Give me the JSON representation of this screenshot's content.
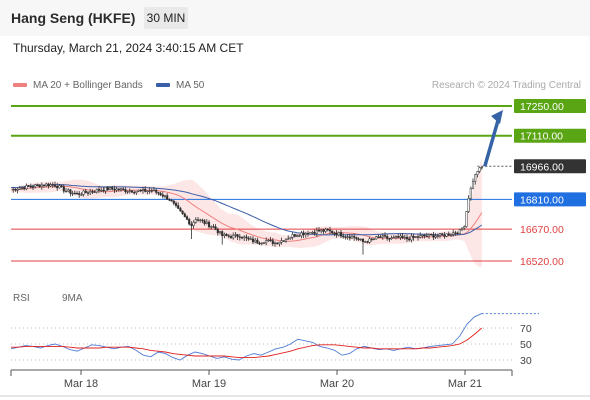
{
  "header": {
    "title": "Hang Seng (HKFE)",
    "timeframe": "30 MIN",
    "datetime": "Thursday, March 21, 2024 3:40:15 AM CET"
  },
  "legend": {
    "ma20": "MA 20 + Bollinger Bands",
    "ma50": "MA 50",
    "credit": "Research © 2024 Trading Central",
    "rsi": "RSI",
    "rsi_ma": "9MA"
  },
  "colors": {
    "candle": "#2f2f2f",
    "ma20": "#f08080",
    "ma50": "#3b5ea8",
    "bands": "#fbdede",
    "target_green": "#5aa514",
    "current_gray": "#333333",
    "pivot_blue": "#1f6fe0",
    "support_red": "#e04040",
    "arrow": "#3563a6",
    "rsi": "#4e7bd4",
    "rsi_ma": "#e0201e"
  },
  "chart_data": [
    {
      "type": "candlestick",
      "instrument": "Hang Seng (HKFE)",
      "interval": "30 MIN",
      "ylim": [
        16470,
        17320
      ],
      "x_ticks": [
        "Mar 18",
        "Mar 19",
        "Mar 20",
        "Mar 21"
      ],
      "series": [
        {
          "name": "MA 20 + Bollinger Bands",
          "kind": "moving_average"
        },
        {
          "name": "MA 50",
          "kind": "moving_average"
        }
      ],
      "price_path": [
        [
          0,
          16855
        ],
        [
          4,
          16865
        ],
        [
          8,
          16870
        ],
        [
          12,
          16876
        ],
        [
          16,
          16880
        ],
        [
          20,
          16878
        ],
        [
          25,
          16850
        ],
        [
          30,
          16835
        ],
        [
          35,
          16845
        ],
        [
          40,
          16855
        ],
        [
          44,
          16860
        ],
        [
          48,
          16858
        ],
        [
          52,
          16853
        ],
        [
          56,
          16850
        ],
        [
          60,
          16850
        ],
        [
          64,
          16852
        ],
        [
          68,
          16836
        ],
        [
          72,
          16810
        ],
        [
          76,
          16760
        ],
        [
          80,
          16715
        ],
        [
          82,
          16690
        ],
        [
          84,
          16720
        ],
        [
          88,
          16700
        ],
        [
          92,
          16680
        ],
        [
          96,
          16640
        ],
        [
          100,
          16635
        ],
        [
          104,
          16640
        ],
        [
          108,
          16620
        ],
        [
          112,
          16610
        ],
        [
          116,
          16615
        ],
        [
          120,
          16605
        ],
        [
          124,
          16620
        ],
        [
          128,
          16640
        ],
        [
          132,
          16650
        ],
        [
          136,
          16655
        ],
        [
          140,
          16662
        ],
        [
          144,
          16662
        ],
        [
          148,
          16650
        ],
        [
          152,
          16640
        ],
        [
          156,
          16632
        ],
        [
          160,
          16610
        ],
        [
          164,
          16620
        ],
        [
          168,
          16634
        ],
        [
          172,
          16625
        ],
        [
          176,
          16630
        ],
        [
          180,
          16625
        ],
        [
          184,
          16632
        ],
        [
          188,
          16638
        ],
        [
          192,
          16640
        ],
        [
          196,
          16640
        ],
        [
          200,
          16650
        ],
        [
          204,
          16660
        ],
        [
          206,
          16690
        ],
        [
          208,
          16820
        ],
        [
          210,
          16900
        ],
        [
          212,
          16945
        ],
        [
          214,
          16960
        ]
      ],
      "levels": [
        {
          "value": 17250.0,
          "label": "17250.00",
          "kind": "target"
        },
        {
          "value": 17110.0,
          "label": "17110.00",
          "kind": "target"
        },
        {
          "value": 16966.0,
          "label": "16966.00",
          "kind": "last_price"
        },
        {
          "value": 16810.0,
          "label": "16810.00",
          "kind": "pivot"
        },
        {
          "value": 16670.0,
          "label": "16670.00",
          "kind": "support"
        },
        {
          "value": 16520.0,
          "label": "16520.00",
          "kind": "support"
        }
      ]
    },
    {
      "type": "line",
      "name": "RSI",
      "ylim": [
        0,
        100
      ],
      "y_ticks": [
        70,
        50,
        30
      ],
      "series": [
        {
          "name": "RSI",
          "values": [
            44,
            46,
            48,
            47,
            45,
            48,
            50,
            47,
            43,
            41,
            45,
            49,
            48,
            46,
            44,
            46,
            47,
            42,
            36,
            34,
            40,
            38,
            33,
            30,
            36,
            40,
            38,
            35,
            32,
            34,
            31,
            30,
            35,
            38,
            36,
            40,
            44,
            46,
            50,
            56,
            54,
            52,
            47,
            45,
            42,
            36,
            38,
            44,
            47,
            45,
            43,
            44,
            42,
            44,
            46,
            44,
            45,
            47,
            48,
            49,
            50,
            60,
            75,
            84,
            88
          ]
        },
        {
          "name": "9MA",
          "values": [
            46,
            46,
            47,
            47,
            47,
            47,
            47,
            47,
            46,
            45,
            45,
            45,
            45,
            46,
            46,
            46,
            46,
            45,
            44,
            42,
            41,
            40,
            38,
            37,
            36,
            35,
            35,
            35,
            35,
            35,
            34,
            33,
            33,
            33,
            34,
            35,
            37,
            39,
            41,
            44,
            46,
            48,
            49,
            49,
            49,
            48,
            47,
            46,
            45,
            45,
            44,
            44,
            44,
            44,
            44,
            44,
            45,
            45,
            46,
            47,
            48,
            50,
            55,
            62,
            70
          ]
        }
      ]
    }
  ]
}
